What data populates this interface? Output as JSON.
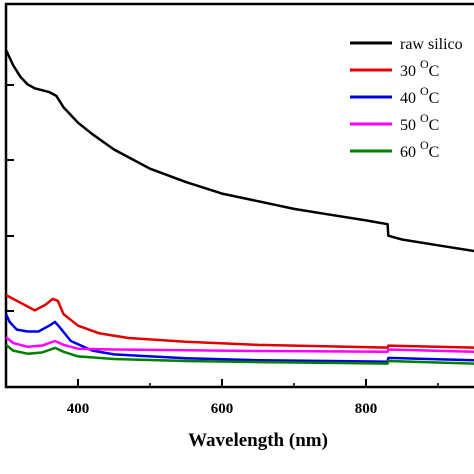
{
  "chart_data": {
    "type": "line",
    "xlabel": "Wavelength (nm)",
    "ylabel": "",
    "xlim": [
      300,
      950
    ],
    "ylim": [
      0,
      100
    ],
    "x_ticks": [
      "400",
      "600",
      "800"
    ],
    "legend_position": "top-right",
    "series": [
      {
        "name": "raw silicon",
        "legend_label": "raw silico",
        "color": "#000000",
        "points": [
          [
            300,
            88
          ],
          [
            310,
            84
          ],
          [
            320,
            81
          ],
          [
            330,
            79
          ],
          [
            340,
            78
          ],
          [
            350,
            77.5
          ],
          [
            360,
            77
          ],
          [
            370,
            76
          ],
          [
            380,
            73
          ],
          [
            400,
            69
          ],
          [
            420,
            66
          ],
          [
            450,
            62
          ],
          [
            500,
            57
          ],
          [
            550,
            53.5
          ],
          [
            600,
            50.5
          ],
          [
            650,
            48.5
          ],
          [
            700,
            46.5
          ],
          [
            750,
            45
          ],
          [
            800,
            43.5
          ],
          [
            830,
            42.5
          ],
          [
            831,
            39.5
          ],
          [
            850,
            38.5
          ],
          [
            900,
            37
          ],
          [
            950,
            35.5
          ]
        ]
      },
      {
        "name": "30 °C",
        "legend_label": "30",
        "legend_sup": "O",
        "legend_unit": "C",
        "color": "#e00000",
        "points": [
          [
            300,
            24
          ],
          [
            310,
            23
          ],
          [
            320,
            22
          ],
          [
            340,
            20
          ],
          [
            355,
            21.5
          ],
          [
            365,
            23
          ],
          [
            372,
            22.5
          ],
          [
            380,
            19
          ],
          [
            400,
            16
          ],
          [
            430,
            14
          ],
          [
            470,
            12.8
          ],
          [
            550,
            11.8
          ],
          [
            650,
            11
          ],
          [
            750,
            10.6
          ],
          [
            830,
            10.3
          ],
          [
            831,
            10.8
          ],
          [
            950,
            10.3
          ]
        ]
      },
      {
        "name": "40 °C",
        "legend_label": "40",
        "legend_sup": "O",
        "legend_unit": "C",
        "color": "#0000e0",
        "points": [
          [
            300,
            19
          ],
          [
            305,
            17
          ],
          [
            315,
            15
          ],
          [
            330,
            14.5
          ],
          [
            345,
            14.5
          ],
          [
            360,
            16
          ],
          [
            368,
            17
          ],
          [
            375,
            15.5
          ],
          [
            390,
            12
          ],
          [
            420,
            9.5
          ],
          [
            450,
            8.5
          ],
          [
            550,
            7.5
          ],
          [
            650,
            7
          ],
          [
            750,
            6.8
          ],
          [
            830,
            6.6
          ],
          [
            831,
            7.6
          ],
          [
            950,
            7
          ]
        ]
      },
      {
        "name": "50 °C",
        "legend_label": "50",
        "legend_sup": "O",
        "legend_unit": "C",
        "color": "#ff00ff",
        "points": [
          [
            300,
            13
          ],
          [
            310,
            11.5
          ],
          [
            330,
            10.5
          ],
          [
            350,
            10.8
          ],
          [
            368,
            12
          ],
          [
            380,
            11
          ],
          [
            400,
            10
          ],
          [
            450,
            9.8
          ],
          [
            550,
            9.6
          ],
          [
            650,
            9.4
          ],
          [
            750,
            9.3
          ],
          [
            830,
            9.2
          ],
          [
            831,
            9.8
          ],
          [
            950,
            9.2
          ]
        ]
      },
      {
        "name": "60 °C",
        "legend_label": "60",
        "legend_sup": "O",
        "legend_unit": "C",
        "color": "#008000",
        "points": [
          [
            300,
            11
          ],
          [
            310,
            9.5
          ],
          [
            330,
            8.7
          ],
          [
            350,
            9
          ],
          [
            368,
            10.2
          ],
          [
            380,
            9.2
          ],
          [
            400,
            8
          ],
          [
            450,
            7.3
          ],
          [
            550,
            6.8
          ],
          [
            650,
            6.5
          ],
          [
            750,
            6.3
          ],
          [
            830,
            6.1
          ],
          [
            831,
            6.8
          ],
          [
            950,
            6.1
          ]
        ]
      }
    ]
  }
}
